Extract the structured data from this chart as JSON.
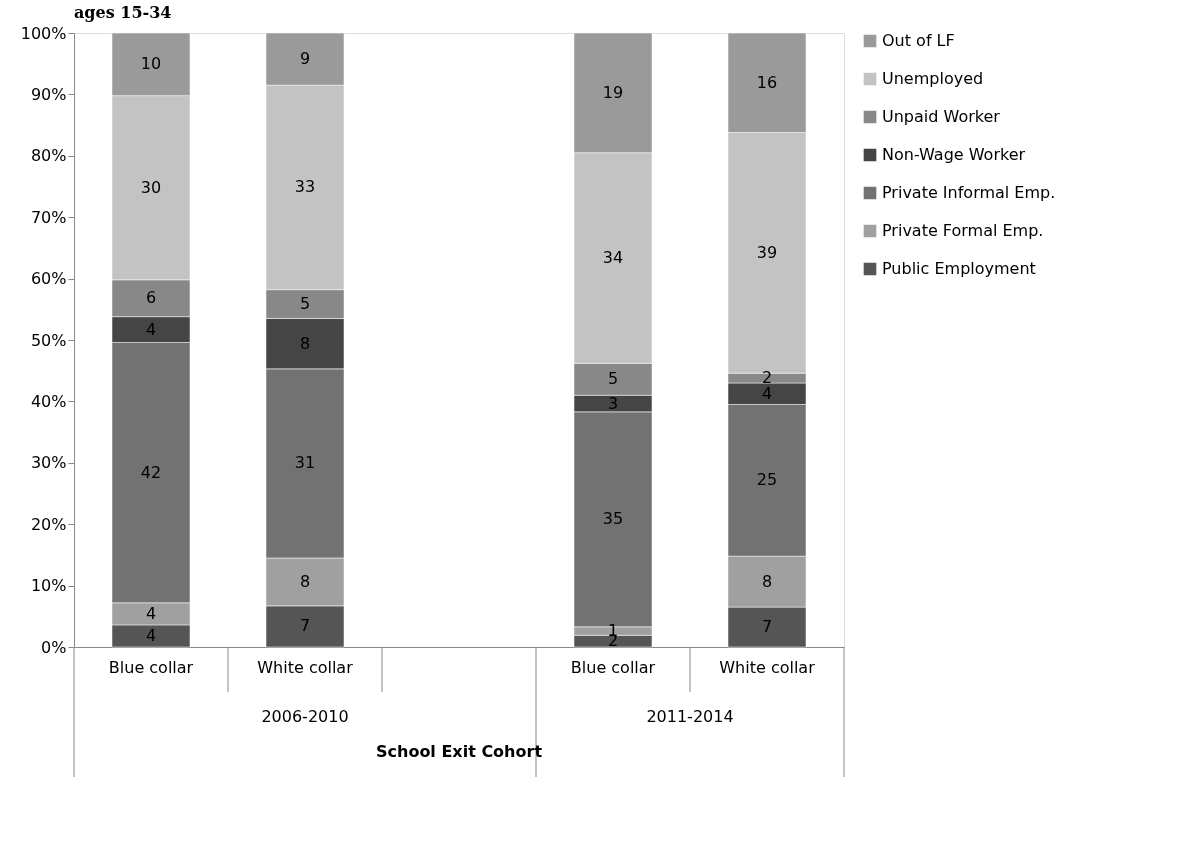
{
  "chart_data": {
    "type": "bar",
    "stacked": true,
    "title": "ages 15-34",
    "xlabel": "School Exit Cohort",
    "categories": [
      "Blue collar",
      "White collar",
      null,
      "Blue collar",
      "White collar"
    ],
    "annotations": [
      "2006-2010",
      "2011-2014"
    ],
    "series": [
      {
        "name": "Public Employment",
        "color": "#555555",
        "values": [
          3.6,
          6.7,
          null,
          1.9,
          6.5
        ],
        "value_labels": [
          "4",
          "7",
          null,
          "2",
          "7"
        ]
      },
      {
        "name": "Private Formal Emp.",
        "color": "#a0a0a0",
        "values": [
          3.6,
          7.8,
          null,
          1.4,
          8.3
        ],
        "value_labels": [
          "4",
          "8",
          null,
          "1",
          "8"
        ]
      },
      {
        "name": "Private Informal Emp.",
        "color": "#727272",
        "values": [
          42.4,
          30.8,
          null,
          35.0,
          24.7
        ],
        "value_labels": [
          "42",
          "31",
          null,
          "35",
          "25"
        ]
      },
      {
        "name": "Non-Wage Worker",
        "color": "#454545",
        "values": [
          4.2,
          8.2,
          null,
          2.7,
          3.5
        ],
        "value_labels": [
          "4",
          "8",
          null,
          "3",
          "4"
        ]
      },
      {
        "name": "Unpaid Worker",
        "color": "#888888",
        "values": [
          6.0,
          4.7,
          null,
          5.2,
          1.6
        ],
        "value_labels": [
          "6",
          "5",
          null,
          "5",
          "2"
        ]
      },
      {
        "name": "Unemployed",
        "color": "#c3c3c3",
        "values": [
          30.0,
          33.3,
          null,
          34.3,
          39.2
        ],
        "value_labels": [
          "30",
          "33",
          null,
          "34",
          "39"
        ]
      },
      {
        "name": "Out of LF",
        "color": "#9a9a9a",
        "values": [
          10.2,
          8.5,
          null,
          19.5,
          16.2
        ],
        "value_labels": [
          "10",
          "9",
          null,
          "19",
          "16"
        ]
      }
    ],
    "ylim": [
      0,
      100
    ],
    "yticks": [
      {
        "value": 0,
        "label": "0%"
      },
      {
        "value": 10,
        "label": "10%"
      },
      {
        "value": 20,
        "label": "20%"
      },
      {
        "value": 30,
        "label": "30%"
      },
      {
        "value": 40,
        "label": "40%"
      },
      {
        "value": 50,
        "label": "50%"
      },
      {
        "value": 60,
        "label": "60%"
      },
      {
        "value": 70,
        "label": "70%"
      },
      {
        "value": 80,
        "label": "80%"
      },
      {
        "value": 90,
        "label": "90%"
      },
      {
        "value": 100,
        "label": "100%"
      }
    ],
    "grid": false,
    "legend": "right"
  }
}
